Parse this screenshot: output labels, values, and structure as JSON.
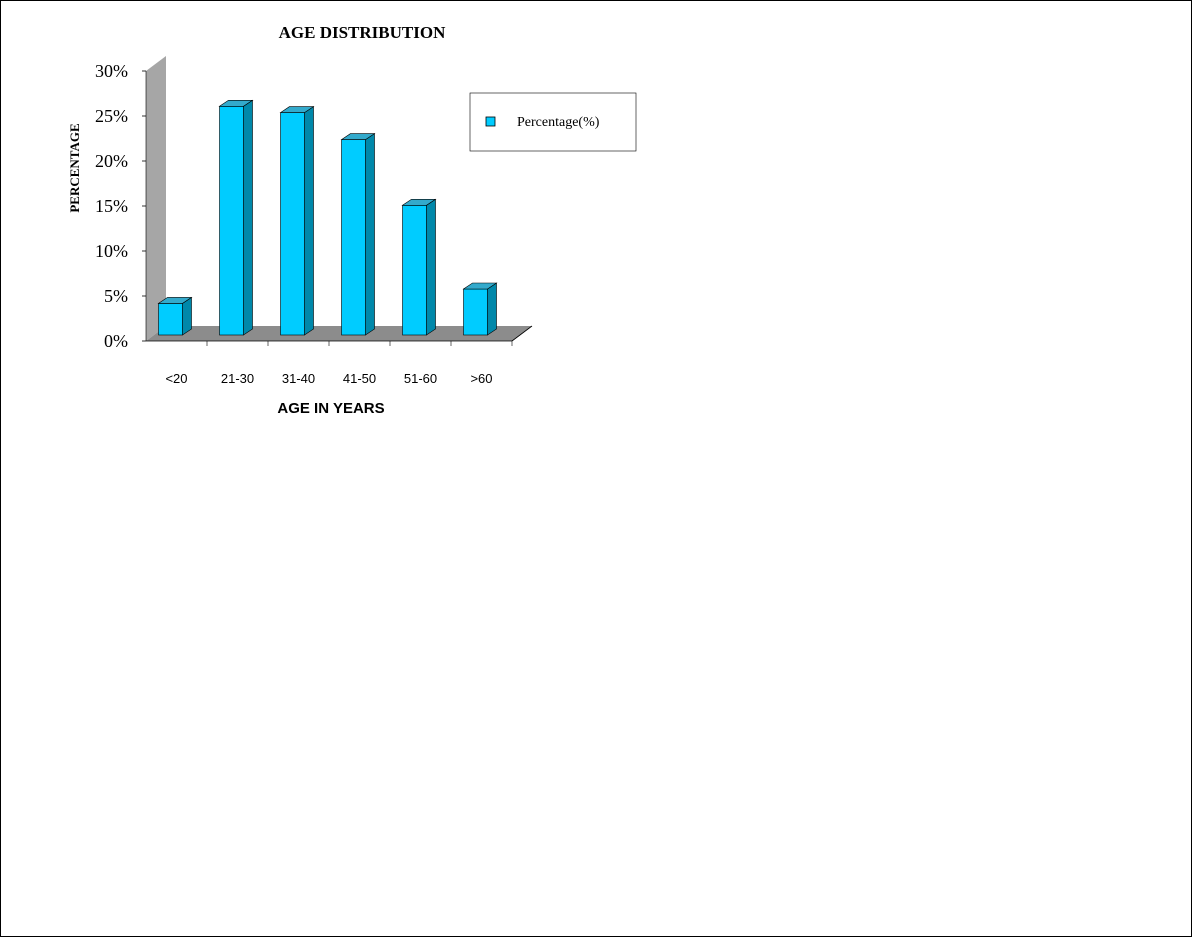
{
  "chart_data": {
    "type": "bar",
    "title": "AGE DISTRIBUTION",
    "xlabel": "AGE IN YEARS",
    "ylabel": "PERCENTAGE",
    "categories": [
      "<20",
      "21-30",
      "31-40",
      "41-50",
      "51-60",
      ">60"
    ],
    "series": [
      {
        "name": "Percentage(%)",
        "values": [
          4.4,
          26.3,
          25.6,
          22.6,
          15.3,
          6.0
        ]
      }
    ],
    "ylim": [
      0,
      30
    ],
    "yticks": [
      0,
      5,
      10,
      15,
      20,
      25,
      30
    ],
    "ytick_labels": [
      "0%",
      "5%",
      "10%",
      "15%",
      "20%",
      "25%",
      "30%"
    ],
    "legend": "right",
    "grid": false,
    "colors": {
      "bar_front": "#00ccff",
      "bar_side": "#0088aa",
      "bar_top": "#33aacc",
      "wall": "#a6a6a6",
      "floor": "#8c8c8c"
    }
  }
}
